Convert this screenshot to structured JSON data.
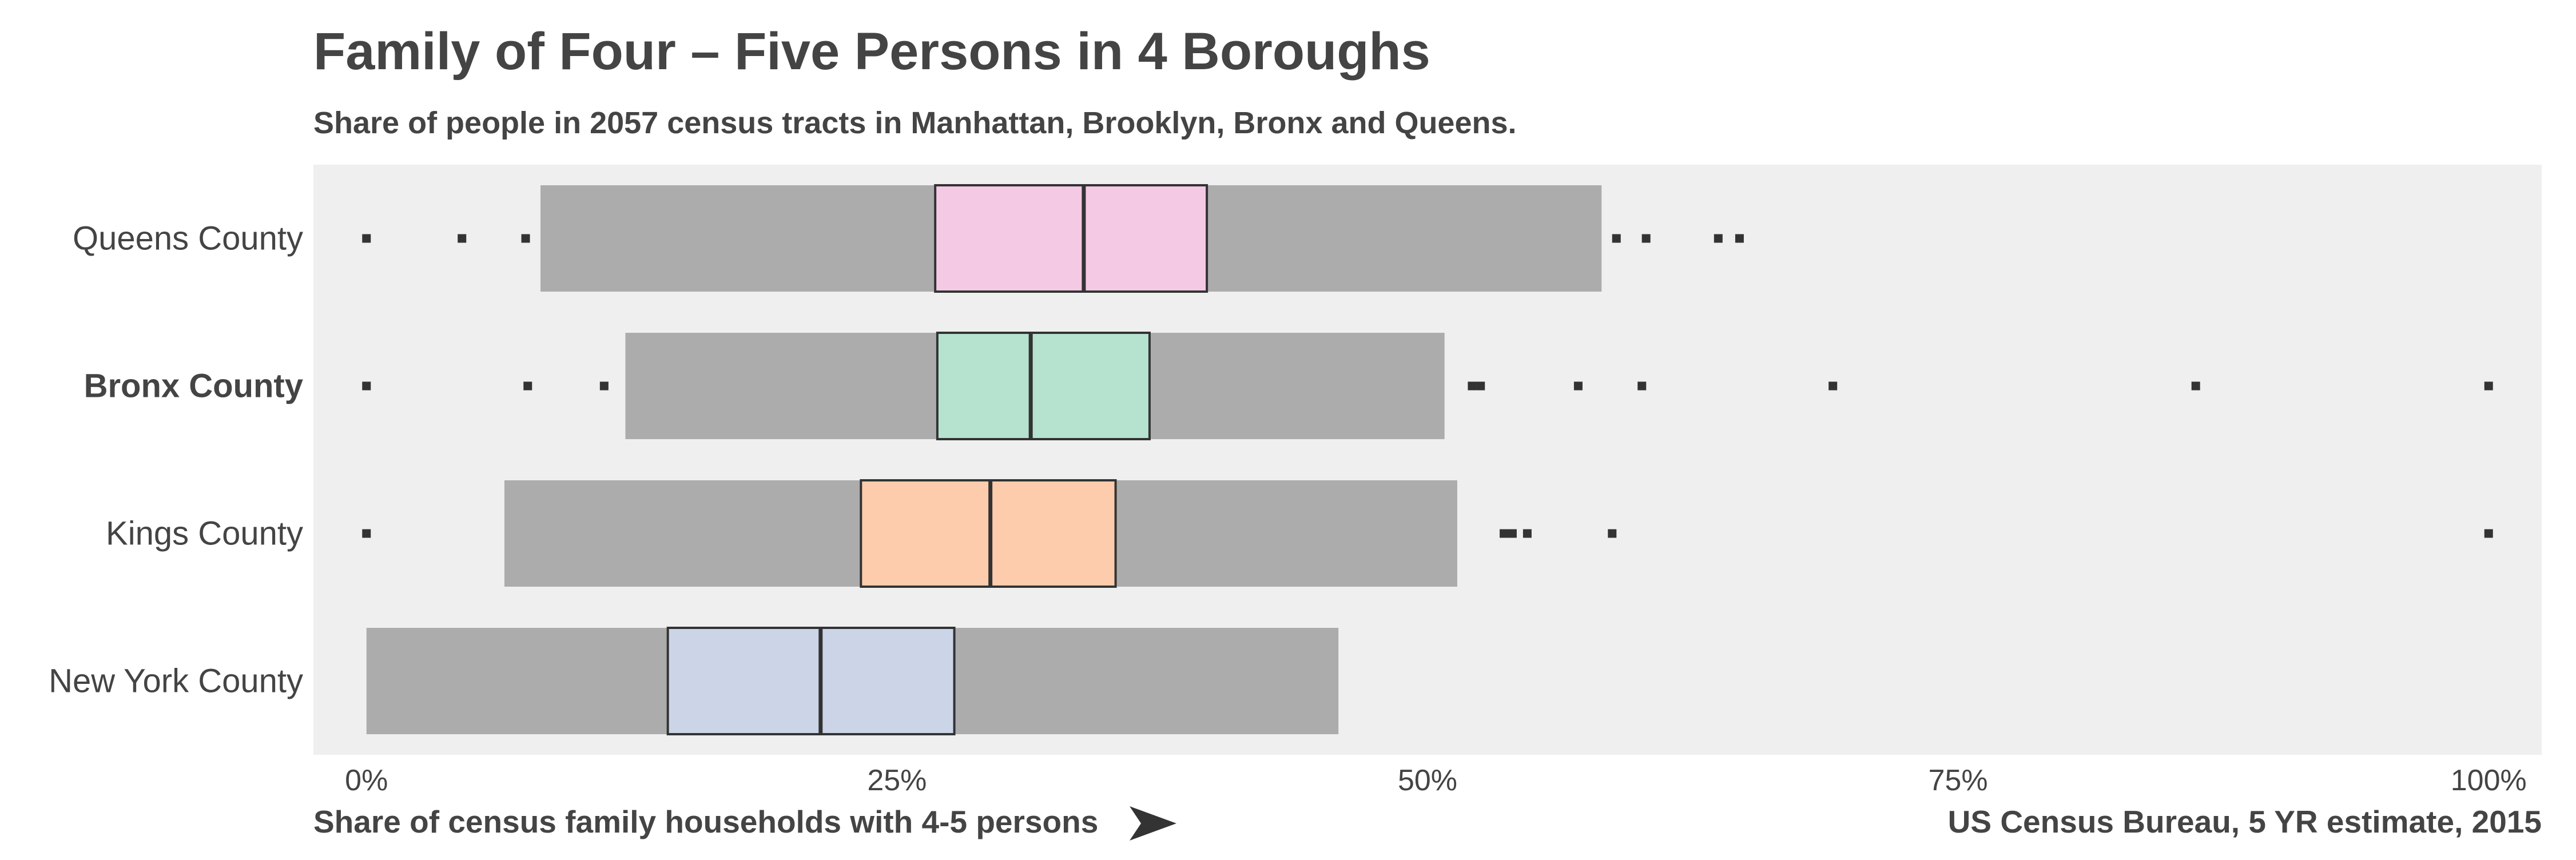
{
  "chart_data": {
    "type": "boxplot",
    "title": "Family of Four – Five Persons in 4 Boroughs",
    "subtitle": "Share of people in 2057 census tracts in Manhattan, Brooklyn, Bronx and Queens.",
    "xlabel": "Share of census family households with 4-5 persons",
    "source": "US Census Bureau, 5 YR estimate, 2015",
    "xlim": [
      -0.025,
      1.025
    ],
    "x_ticks": [
      0,
      0.25,
      0.5,
      0.75,
      1.0
    ],
    "x_tick_labels": [
      "0%",
      "25%",
      "50%",
      "75%",
      "100%"
    ],
    "grid": false,
    "highlighted_category": "Bronx County",
    "categories": [
      {
        "name": "Queens County",
        "whisker_low": 0.082,
        "q1": 0.268,
        "median": 0.338,
        "q3": 0.396,
        "whisker_high": 0.582,
        "outliers": [
          0.0,
          0.045,
          0.075,
          0.589,
          0.603,
          0.637,
          0.647
        ],
        "color": "#f4c9e4"
      },
      {
        "name": "Bronx County",
        "bold": true,
        "whisker_low": 0.122,
        "q1": 0.269,
        "median": 0.313,
        "q3": 0.369,
        "whisker_high": 0.508,
        "outliers": [
          0.0,
          0.076,
          0.112,
          0.521,
          0.525,
          0.571,
          0.601,
          0.691,
          0.862,
          1.0
        ],
        "color": "#b5e3cf"
      },
      {
        "name": "Kings County",
        "whisker_low": 0.065,
        "q1": 0.233,
        "median": 0.294,
        "q3": 0.353,
        "whisker_high": 0.514,
        "outliers": [
          0.0,
          0.536,
          0.54,
          0.547,
          0.587,
          1.0
        ],
        "color": "#fdccac"
      },
      {
        "name": "New York County",
        "whisker_low": 0.0,
        "q1": 0.142,
        "median": 0.214,
        "q3": 0.277,
        "whisker_high": 0.458,
        "outliers": [],
        "color": "#cbd5e7"
      }
    ],
    "colors": {
      "panel_background": "#efefef",
      "whisker_band": "#acacac",
      "box_stroke": "#333333",
      "outlier": "#333333",
      "text": "#444444"
    }
  }
}
